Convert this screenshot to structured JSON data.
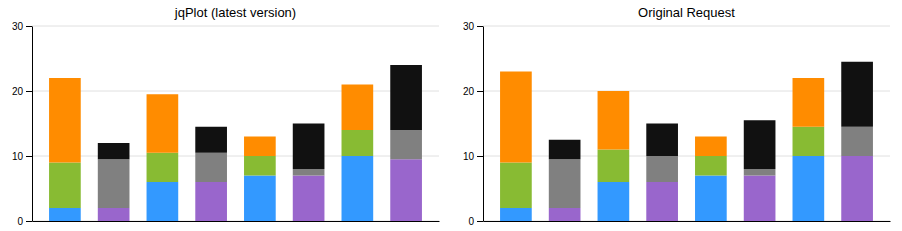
{
  "chart_data": [
    {
      "type": "bar",
      "stacked": true,
      "title": "jqPlot (latest version)",
      "categories": [
        null,
        null,
        null,
        null,
        null,
        null,
        null,
        null
      ],
      "series": [
        {
          "values": [
            2,
            2,
            6,
            6,
            7,
            7,
            10,
            9.5
          ],
          "colors": [
            "#3399ff",
            "#9966cc",
            "#3399ff",
            "#9966cc",
            "#3399ff",
            "#9966cc",
            "#3399ff",
            "#9966cc"
          ]
        },
        {
          "values": [
            7,
            7.5,
            4.5,
            4.5,
            3,
            1,
            4,
            4.5
          ],
          "colors": [
            "#88bb33",
            "#808080",
            "#88bb33",
            "#808080",
            "#88bb33",
            "#808080",
            "#88bb33",
            "#808080"
          ]
        },
        {
          "values": [
            13,
            2.5,
            9,
            4,
            3,
            7,
            7,
            10
          ],
          "colors": [
            "#ff8c00",
            "#111111",
            "#ff8c00",
            "#111111",
            "#ff8c00",
            "#111111",
            "#ff8c00",
            "#111111"
          ]
        }
      ],
      "ylim": [
        0,
        30
      ],
      "yticks": [
        0,
        10,
        20,
        30
      ],
      "grid": true,
      "tick_labels": "y"
    },
    {
      "type": "bar",
      "stacked": true,
      "title": "Original Request",
      "categories": [
        null,
        null,
        null,
        null,
        null,
        null,
        null,
        null
      ],
      "series": [
        {
          "values": [
            2,
            2,
            6,
            6,
            7,
            7,
            10,
            10
          ],
          "colors": [
            "#3399ff",
            "#9966cc",
            "#3399ff",
            "#9966cc",
            "#3399ff",
            "#9966cc",
            "#3399ff",
            "#9966cc"
          ]
        },
        {
          "values": [
            7,
            7.5,
            5,
            4,
            3,
            1,
            4.5,
            4.5
          ],
          "colors": [
            "#88bb33",
            "#808080",
            "#88bb33",
            "#808080",
            "#88bb33",
            "#808080",
            "#88bb33",
            "#808080"
          ]
        },
        {
          "values": [
            14,
            3,
            9,
            5,
            3,
            7.5,
            7.5,
            10
          ],
          "colors": [
            "#ff8c00",
            "#111111",
            "#ff8c00",
            "#111111",
            "#ff8c00",
            "#111111",
            "#ff8c00",
            "#111111"
          ]
        }
      ],
      "ylim": [
        0,
        30
      ],
      "yticks": [
        0,
        10,
        20,
        30
      ],
      "grid": true,
      "tick_labels": "y"
    }
  ]
}
